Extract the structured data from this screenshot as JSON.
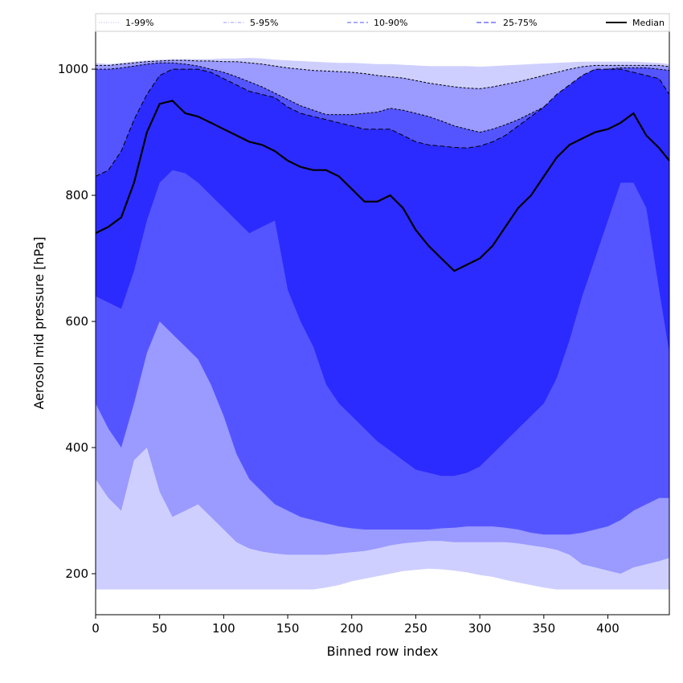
{
  "chart_data": {
    "type": "area",
    "title": "",
    "xlabel": "Binned row index",
    "ylabel": "Aerosol mid pressure [hPa]",
    "xlim": [
      0,
      448
    ],
    "ylim": [
      135,
      1060
    ],
    "x_ticks": [
      0,
      50,
      100,
      150,
      200,
      250,
      300,
      350,
      400
    ],
    "y_ticks": [
      200,
      400,
      600,
      800,
      1000
    ],
    "grid": false,
    "legend_position": "top",
    "x": [
      0,
      10,
      20,
      30,
      40,
      50,
      60,
      70,
      80,
      90,
      100,
      110,
      120,
      130,
      140,
      150,
      160,
      170,
      180,
      190,
      200,
      210,
      220,
      230,
      240,
      250,
      260,
      270,
      280,
      290,
      300,
      310,
      320,
      330,
      340,
      350,
      360,
      370,
      380,
      390,
      400,
      410,
      420,
      430,
      440,
      448
    ],
    "series": [
      {
        "name": "1-99%",
        "color": "#cfcfff",
        "style": "dotted",
        "lower": [
          175,
          175,
          175,
          175,
          175,
          175,
          175,
          175,
          175,
          175,
          175,
          175,
          175,
          175,
          175,
          175,
          175,
          175,
          178,
          182,
          188,
          192,
          196,
          200,
          204,
          206,
          208,
          207,
          205,
          202,
          198,
          195,
          190,
          186,
          182,
          178,
          175,
          175,
          175,
          175,
          175,
          175,
          175,
          175,
          175,
          175
        ],
        "upper": [
          1010,
          1008,
          1010,
          1012,
          1014,
          1015,
          1016,
          1016,
          1016,
          1016,
          1017,
          1017,
          1018,
          1017,
          1015,
          1014,
          1013,
          1012,
          1011,
          1010,
          1010,
          1009,
          1008,
          1008,
          1007,
          1006,
          1005,
          1005,
          1005,
          1005,
          1004,
          1005,
          1006,
          1007,
          1008,
          1009,
          1010,
          1011,
          1012,
          1012,
          1012,
          1012,
          1012,
          1011,
          1010,
          1008
        ]
      },
      {
        "name": "5-95%",
        "color": "#9a9aff",
        "style": "dashdot",
        "lower": [
          350,
          320,
          300,
          380,
          400,
          330,
          290,
          300,
          310,
          290,
          270,
          250,
          240,
          235,
          232,
          230,
          230,
          230,
          230,
          232,
          234,
          236,
          240,
          245,
          248,
          250,
          252,
          252,
          250,
          250,
          250,
          250,
          250,
          248,
          245,
          242,
          238,
          230,
          215,
          210,
          205,
          200,
          210,
          215,
          220,
          225
        ],
        "upper": [
          1006,
          1006,
          1008,
          1010,
          1012,
          1013,
          1014,
          1014,
          1013,
          1013,
          1012,
          1012,
          1010,
          1008,
          1005,
          1002,
          1000,
          998,
          997,
          996,
          995,
          993,
          990,
          988,
          986,
          982,
          978,
          975,
          972,
          970,
          969,
          972,
          976,
          980,
          985,
          990,
          995,
          1000,
          1004,
          1006,
          1006,
          1006,
          1006,
          1006,
          1006,
          1004
        ]
      },
      {
        "name": "10-90%",
        "color": "#5555ff",
        "style": "dashed",
        "lower": [
          470,
          430,
          400,
          470,
          550,
          600,
          580,
          560,
          540,
          500,
          450,
          390,
          350,
          330,
          310,
          300,
          290,
          285,
          280,
          275,
          272,
          270,
          270,
          270,
          270,
          270,
          270,
          272,
          273,
          275,
          275,
          275,
          273,
          270,
          265,
          262,
          262,
          262,
          265,
          270,
          275,
          285,
          300,
          310,
          320,
          320
        ],
        "upper": [
          1000,
          1000,
          1002,
          1005,
          1008,
          1010,
          1010,
          1008,
          1005,
          1000,
          995,
          988,
          980,
          972,
          962,
          952,
          942,
          935,
          928,
          928,
          928,
          930,
          932,
          938,
          935,
          930,
          925,
          918,
          910,
          905,
          900,
          905,
          912,
          920,
          930,
          940,
          955,
          970,
          985,
          995,
          1000,
          1002,
          1002,
          1002,
          1000,
          998
        ]
      },
      {
        "name": "25-75%",
        "color": "#2b2bff",
        "style": "dashed",
        "lower": [
          640,
          630,
          620,
          680,
          760,
          820,
          840,
          835,
          820,
          800,
          780,
          760,
          740,
          750,
          760,
          650,
          600,
          560,
          500,
          470,
          450,
          430,
          410,
          395,
          380,
          365,
          360,
          355,
          355,
          360,
          370,
          390,
          410,
          430,
          450,
          470,
          510,
          570,
          640,
          700,
          760,
          820,
          820,
          780,
          650,
          550
        ],
        "upper": [
          830,
          840,
          870,
          920,
          960,
          990,
          1000,
          1000,
          1000,
          995,
          985,
          975,
          965,
          960,
          955,
          940,
          930,
          925,
          920,
          915,
          910,
          905,
          905,
          905,
          895,
          885,
          880,
          878,
          876,
          875,
          878,
          885,
          895,
          910,
          925,
          940,
          960,
          975,
          990,
          1000,
          1000,
          1000,
          995,
          990,
          985,
          960
        ]
      }
    ],
    "median": {
      "name": "Median",
      "color": "#000000",
      "values": [
        740,
        750,
        765,
        820,
        900,
        945,
        950,
        930,
        925,
        915,
        905,
        895,
        885,
        880,
        870,
        855,
        845,
        840,
        840,
        830,
        810,
        790,
        790,
        800,
        780,
        745,
        720,
        700,
        680,
        690,
        700,
        720,
        750,
        780,
        800,
        830,
        860,
        880,
        890,
        900,
        905,
        915,
        930,
        895,
        875,
        855
      ]
    }
  }
}
